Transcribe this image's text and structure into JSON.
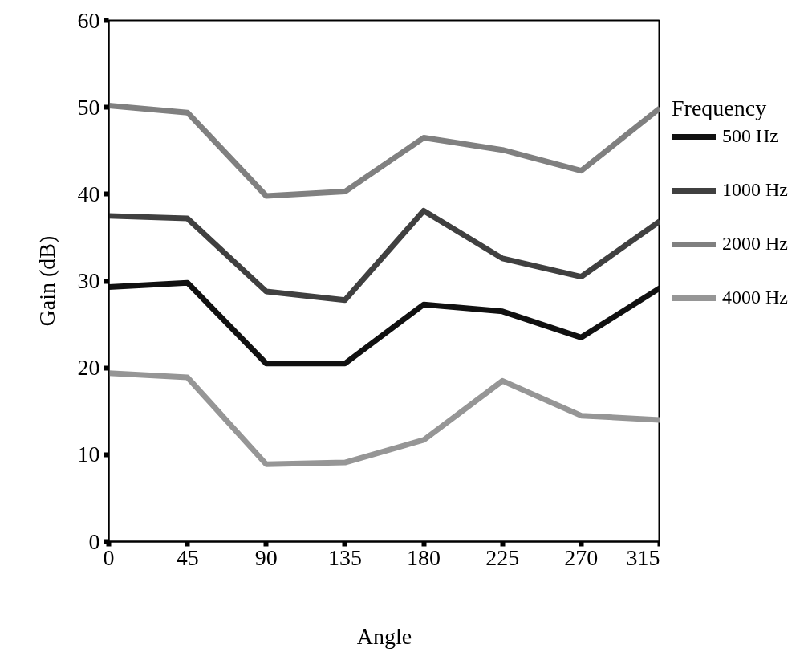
{
  "chart_data": {
    "type": "line",
    "xlabel": "Angle",
    "ylabel": "Gain (dB)",
    "legend_title": "Frequency",
    "x": [
      0,
      45,
      90,
      135,
      180,
      225,
      270,
      315
    ],
    "series": [
      {
        "name": "500 Hz",
        "color": "#111111",
        "values": [
          29.3,
          29.8,
          20.5,
          20.5,
          27.3,
          26.5,
          23.5,
          29.2
        ]
      },
      {
        "name": "1000 Hz",
        "color": "#404040",
        "values": [
          37.5,
          37.2,
          28.8,
          27.8,
          38.1,
          32.6,
          30.5,
          36.9
        ]
      },
      {
        "name": "2000 Hz",
        "color": "#808080",
        "values": [
          50.2,
          49.4,
          39.8,
          40.3,
          46.5,
          45.1,
          42.7,
          49.9
        ]
      },
      {
        "name": "4000 Hz",
        "color": "#969696",
        "values": [
          19.4,
          18.9,
          8.9,
          9.1,
          11.7,
          18.5,
          14.5,
          14.0
        ]
      }
    ],
    "xlim": [
      0,
      315
    ],
    "ylim": [
      0,
      60
    ],
    "xticks": [
      0,
      45,
      90,
      135,
      180,
      225,
      270,
      315
    ],
    "yticks": [
      0,
      10,
      20,
      30,
      40,
      50,
      60
    ],
    "grid": false,
    "legend": "right",
    "marker": "none",
    "line_style": "solid"
  }
}
